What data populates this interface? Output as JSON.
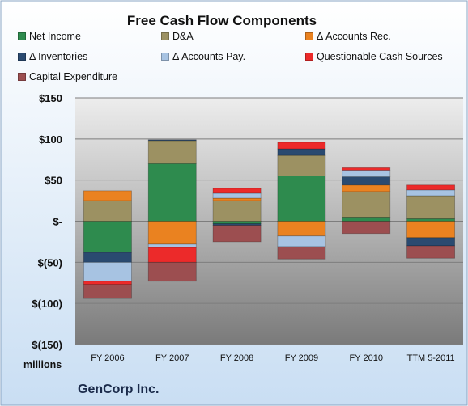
{
  "chart_data": {
    "type": "bar",
    "stacked": true,
    "title": "Free Cash Flow Components",
    "categories": [
      "FY 2006",
      "FY 2007",
      "FY 2008",
      "FY 2009",
      "FY 2010",
      "TTM 5-2011"
    ],
    "ylim": [
      -150,
      150
    ],
    "yticks": [
      150,
      100,
      50,
      0,
      -50,
      -100,
      -150
    ],
    "ytick_labels": [
      "$150",
      "$100",
      "$50",
      "$-",
      "$(50)",
      "$(100)",
      "$(150)"
    ],
    "ylabel": "millions",
    "legend_position": "top",
    "grid": true,
    "series": [
      {
        "name": "Net Income",
        "color": "#2e8b4e",
        "values": [
          -38,
          70,
          -3,
          55,
          5,
          3
        ]
      },
      {
        "name": "D&A",
        "color": "#9c9162",
        "values": [
          25,
          28,
          25,
          25,
          31,
          28
        ]
      },
      {
        "name": "Δ Accounts Rec.",
        "color": "#ea8220",
        "values": [
          12,
          -28,
          3,
          -18,
          8,
          -20
        ]
      },
      {
        "name": "Δ Inventories",
        "color": "#2a4a70",
        "values": [
          -12,
          1,
          -2,
          8,
          10,
          -10
        ]
      },
      {
        "name": "Δ Accounts Pay.",
        "color": "#a7c3e2",
        "values": [
          -23,
          -4,
          6,
          -13,
          8,
          7
        ]
      },
      {
        "name": "Questionable Cash Sources",
        "color": "#ec2a2a",
        "values": [
          -4,
          -18,
          6,
          8,
          3,
          6
        ]
      },
      {
        "name": "Capital Expenditure",
        "color": "#9c4e50",
        "values": [
          -17,
          -23,
          -20,
          -15,
          -15,
          -15
        ]
      }
    ]
  },
  "footer": {
    "company": "GenCorp Inc."
  }
}
